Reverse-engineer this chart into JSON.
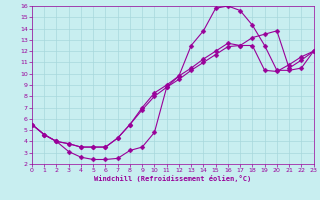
{
  "xlabel": "Windchill (Refroidissement éolien,°C)",
  "xlim": [
    0,
    23
  ],
  "ylim": [
    2,
    16
  ],
  "xticks": [
    0,
    1,
    2,
    3,
    4,
    5,
    6,
    7,
    8,
    9,
    10,
    11,
    12,
    13,
    14,
    15,
    16,
    17,
    18,
    19,
    20,
    21,
    22,
    23
  ],
  "yticks": [
    2,
    3,
    4,
    5,
    6,
    7,
    8,
    9,
    10,
    11,
    12,
    13,
    14,
    15,
    16
  ],
  "bg_color": "#c8eef0",
  "grid_color": "#a8d8dc",
  "line_color": "#990099",
  "markersize": 2.5,
  "linewidth": 0.8,
  "line1_x": [
    0,
    1,
    2,
    3,
    4,
    5,
    6,
    7,
    8,
    9,
    10,
    11,
    12,
    13,
    14,
    15,
    16,
    17,
    18,
    19,
    20,
    21,
    22,
    23
  ],
  "line1_y": [
    5.5,
    4.6,
    4.0,
    3.1,
    2.6,
    2.4,
    2.4,
    2.5,
    3.2,
    3.5,
    4.8,
    8.8,
    9.8,
    12.5,
    13.8,
    15.8,
    16.0,
    15.6,
    14.3,
    12.5,
    10.3,
    10.3,
    10.5,
    12.0
  ],
  "line2_x": [
    0,
    1,
    2,
    3,
    4,
    5,
    6,
    7,
    8,
    9,
    10,
    11,
    12,
    13,
    14,
    15,
    16,
    17,
    18,
    19,
    20,
    21,
    22,
    23
  ],
  "line2_y": [
    5.5,
    4.6,
    4.0,
    3.8,
    3.5,
    3.5,
    3.5,
    4.3,
    5.5,
    6.8,
    8.0,
    8.8,
    9.5,
    10.3,
    11.0,
    11.7,
    12.4,
    12.5,
    13.2,
    13.5,
    13.8,
    10.5,
    11.2,
    12.0
  ],
  "line3_x": [
    0,
    1,
    2,
    3,
    4,
    5,
    6,
    7,
    8,
    9,
    10,
    11,
    12,
    13,
    14,
    15,
    16,
    17,
    18,
    19,
    20,
    21,
    22,
    23
  ],
  "line3_y": [
    5.5,
    4.6,
    4.0,
    3.8,
    3.5,
    3.5,
    3.5,
    4.3,
    5.5,
    7.0,
    8.3,
    9.0,
    9.8,
    10.5,
    11.3,
    12.0,
    12.7,
    12.5,
    12.5,
    10.3,
    10.2,
    10.8,
    11.5,
    12.0
  ]
}
